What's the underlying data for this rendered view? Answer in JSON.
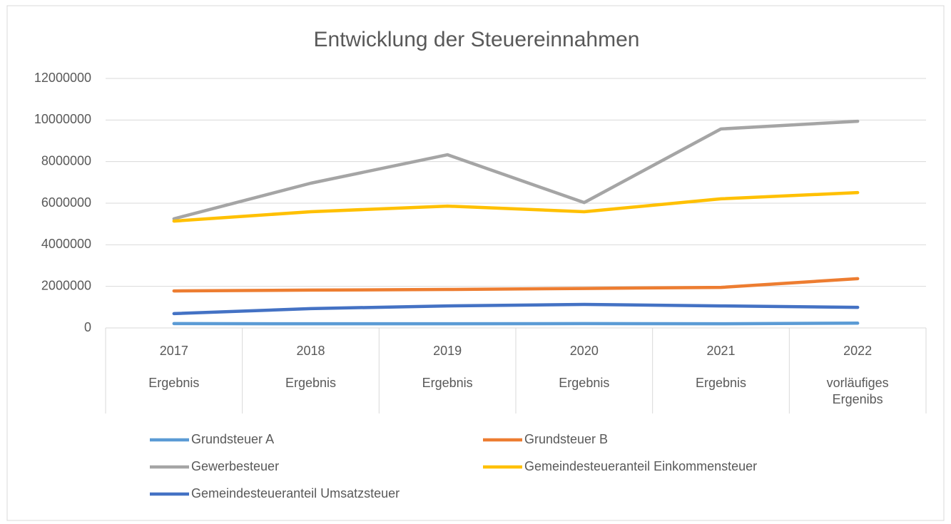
{
  "chart_data": {
    "type": "line",
    "title": "Entwicklung der Steuereinnahmen",
    "categories": [
      [
        "2017",
        "Ergebnis"
      ],
      [
        "2018",
        "Ergebnis"
      ],
      [
        "2019",
        "Ergebnis"
      ],
      [
        "2020",
        "Ergebnis"
      ],
      [
        "2021",
        "Ergebnis"
      ],
      [
        "2022",
        "vorläufiges Ergenibs"
      ]
    ],
    "series": [
      {
        "name": "Grundsteuer A",
        "color": "#5b9bd5",
        "values": [
          210000,
          200000,
          200000,
          210000,
          200000,
          230000
        ]
      },
      {
        "name": "Grundsteuer B",
        "color": "#ed7d31",
        "values": [
          1780000,
          1820000,
          1850000,
          1900000,
          1950000,
          2370000
        ]
      },
      {
        "name": "Gewerbesteuer",
        "color": "#a5a5a5",
        "values": [
          5250000,
          6960000,
          8330000,
          6030000,
          9570000,
          9940000
        ]
      },
      {
        "name": "Gemeindesteueranteil Einkommensteuer",
        "color": "#ffc000",
        "values": [
          5140000,
          5590000,
          5860000,
          5590000,
          6210000,
          6510000
        ]
      },
      {
        "name": "Gemeindesteueranteil Umsatzsteuer",
        "color": "#4472c4",
        "values": [
          690000,
          930000,
          1060000,
          1130000,
          1060000,
          990000
        ]
      }
    ],
    "ylim": [
      0,
      12000000
    ],
    "yticks": [
      0,
      2000000,
      4000000,
      6000000,
      8000000,
      10000000,
      12000000
    ],
    "grid": true,
    "legend": "bottom"
  }
}
